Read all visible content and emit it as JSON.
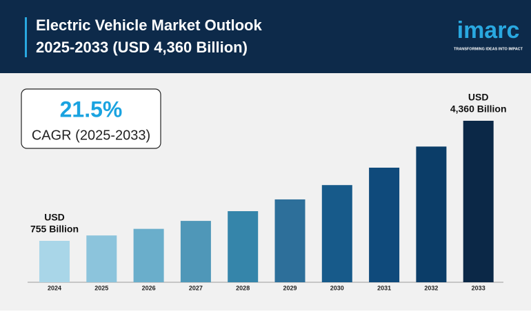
{
  "chart_data": {
    "type": "bar",
    "title": "Electric Vehicle Market Outlook",
    "subtitle": "2025-2033 (USD 4,360 Billion)",
    "annotation": {
      "value": "21.5%",
      "label": "CAGR (2025-2033)"
    },
    "categories": [
      "2024",
      "2025",
      "2026",
      "2027",
      "2028",
      "2029",
      "2030",
      "2031",
      "2032",
      "2033"
    ],
    "values": [
      755,
      917,
      1115,
      1354,
      1646,
      1999,
      2429,
      2952,
      3586,
      4360
    ],
    "value_labels": [
      [
        "USD",
        "755 Billion"
      ],
      null,
      null,
      null,
      null,
      null,
      null,
      null,
      null,
      [
        "USD",
        "4,360 Billion"
      ]
    ],
    "colors": [
      "#a9d6e8",
      "#8cc4dc",
      "#6aaecb",
      "#4f97b8",
      "#3585aa",
      "#2d6f9a",
      "#175a8a",
      "#0f4a7b",
      "#0b3d68",
      "#0b2847"
    ]
  },
  "brand": {
    "name": "imarc",
    "tagline": "TRANSFORMING IDEAS INTO IMPACT"
  }
}
